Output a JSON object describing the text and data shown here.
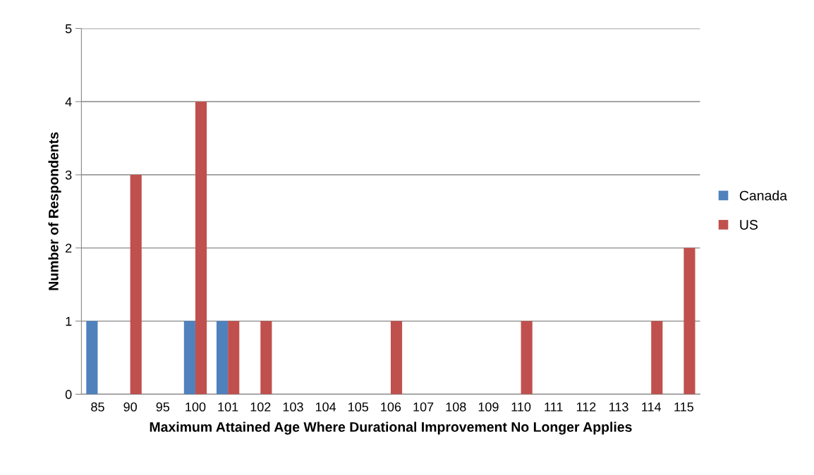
{
  "chart_data": {
    "type": "bar",
    "xlabel": "Maximum Attained Age Where Durational Improvement No Longer Applies",
    "ylabel": "Number of Respondents",
    "categories": [
      "85",
      "90",
      "95",
      "100",
      "101",
      "102",
      "103",
      "104",
      "105",
      "106",
      "107",
      "108",
      "109",
      "110",
      "111",
      "112",
      "113",
      "114",
      "115"
    ],
    "series": [
      {
        "name": "Canada",
        "color": "#4f81bd",
        "values": [
          1,
          0,
          0,
          1,
          1,
          0,
          0,
          0,
          0,
          0,
          0,
          0,
          0,
          0,
          0,
          0,
          0,
          0,
          0
        ]
      },
      {
        "name": "US",
        "color": "#c0504d",
        "values": [
          0,
          3,
          0,
          4,
          1,
          1,
          0,
          0,
          0,
          1,
          0,
          0,
          0,
          1,
          0,
          0,
          0,
          1,
          2
        ]
      }
    ],
    "ylim": [
      0,
      5
    ],
    "yticks": [
      0,
      1,
      2,
      3,
      4,
      5
    ],
    "grid": "y",
    "legend": "right"
  }
}
